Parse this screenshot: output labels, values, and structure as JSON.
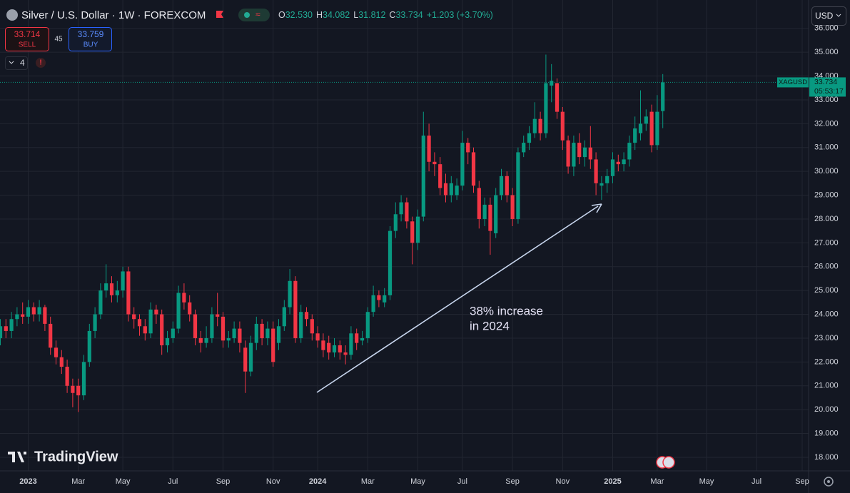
{
  "header": {
    "symbol": "Silver / U.S. Dollar · 1W · FOREXCOM",
    "ohlc": [
      {
        "label": "O",
        "value": "32.530"
      },
      {
        "label": "H",
        "value": "34.082"
      },
      {
        "label": "L",
        "value": "31.812"
      },
      {
        "label": "C",
        "value": "33.734"
      }
    ],
    "change": "+1.203 (+3.70%)"
  },
  "trade": {
    "sell_price": "33.714",
    "sell": "SELL",
    "spread": "45",
    "buy_price": "33.759",
    "buy": "BUY",
    "indicators": "4"
  },
  "currency": "USD",
  "brand": "TradingView",
  "chart_data": {
    "type": "candlestick",
    "symbol_label": "XAGUSD",
    "countdown": "05:53:17",
    "annotation": [
      "38% increase",
      "in 2024"
    ],
    "up_color": "#089981",
    "down_color": "#f23645",
    "categories": [
      null,
      null,
      null,
      null,
      null,
      "2023",
      null,
      null,
      null,
      null,
      null,
      null,
      null,
      null,
      "Mar",
      null,
      null,
      null,
      null,
      null,
      null,
      null,
      "May",
      null,
      null,
      null,
      null,
      null,
      null,
      null,
      null,
      "Jul",
      null,
      null,
      null,
      null,
      null,
      null,
      null,
      null,
      "Sep",
      null,
      null,
      null,
      null,
      null,
      null,
      null,
      null,
      "Nov",
      null,
      null,
      null,
      null,
      null,
      null,
      null,
      "2024",
      null,
      null,
      null,
      null,
      null,
      null,
      null,
      null,
      "Mar",
      null,
      null,
      null,
      null,
      null,
      null,
      null,
      null,
      "May",
      null,
      null,
      null,
      null,
      null,
      null,
      null,
      "Jul",
      null,
      null,
      null,
      null,
      null,
      null,
      null,
      null,
      "Sep",
      null,
      null,
      null,
      null,
      null,
      null,
      null,
      null,
      "Nov",
      null,
      null,
      null,
      null,
      null,
      null,
      null,
      null,
      "2025",
      null,
      null,
      null,
      null,
      null,
      null,
      null,
      "Mar",
      null
    ],
    "future_categories": [
      "May",
      "Jul",
      "Sep"
    ],
    "open": [
      23.0,
      23.5,
      23.3,
      23.8,
      24.0,
      23.9,
      24.3,
      24.0,
      24.3,
      23.6,
      22.6,
      22.2,
      21.8,
      21.0,
      21.0,
      20.6,
      22.0,
      23.3,
      24.0,
      25.0,
      25.3,
      24.8,
      25.0,
      25.8,
      24.0,
      23.8,
      23.5,
      23.2,
      24.2,
      24.0,
      22.7,
      23.0,
      23.4,
      24.9,
      24.5,
      24.0,
      23.0,
      22.8,
      23.0,
      24.0,
      23.9,
      22.9,
      23.0,
      23.4,
      22.6,
      21.6,
      22.8,
      23.6,
      23.0,
      23.4,
      22.8,
      23.5,
      24.3,
      25.4,
      23.0,
      24.1,
      23.8,
      23.2,
      22.9,
      22.8,
      22.4,
      22.7,
      22.4,
      22.3,
      23.2,
      22.9,
      23.0,
      24.1,
      24.8,
      24.5,
      24.8,
      27.5,
      28.2,
      28.7,
      27.9,
      27.0,
      28.1,
      31.5,
      30.4,
      30.3,
      29.5,
      29.0,
      29.0,
      29.4,
      31.2,
      30.8,
      29.3,
      28.0,
      28.6,
      27.4,
      29.0,
      29.8,
      29.0,
      28.0,
      30.8,
      31.2,
      31.6,
      32.2,
      31.6,
      33.6,
      33.7,
      32.5,
      31.3,
      30.2,
      31.2,
      30.6,
      31.0,
      30.5,
      29.4,
      29.5,
      29.8,
      30.4,
      30.3,
      30.5,
      31.2,
      31.6,
      32.0,
      32.5,
      31.1,
      32.53
    ],
    "high": [
      23.8,
      23.8,
      24.1,
      24.3,
      24.5,
      24.6,
      24.5,
      24.6,
      24.4,
      23.9,
      22.9,
      22.5,
      22.1,
      21.3,
      21.3,
      22.3,
      23.6,
      24.3,
      25.3,
      26.1,
      25.6,
      25.4,
      26.0,
      26.0,
      24.3,
      24.0,
      23.8,
      24.5,
      24.4,
      24.2,
      23.3,
      23.7,
      25.2,
      25.3,
      24.8,
      24.2,
      23.3,
      23.5,
      24.3,
      24.9,
      24.1,
      23.3,
      23.7,
      23.7,
      22.9,
      23.1,
      23.9,
      23.8,
      23.7,
      23.7,
      23.8,
      24.6,
      25.9,
      25.6,
      24.4,
      24.3,
      24.0,
      23.5,
      23.2,
      23.1,
      23.0,
      22.9,
      22.7,
      23.5,
      23.4,
      23.3,
      24.3,
      25.2,
      25.0,
      25.1,
      27.7,
      28.7,
      29.0,
      28.9,
      28.1,
      28.4,
      32.5,
      32.0,
      30.8,
      30.6,
      29.9,
      29.8,
      29.7,
      31.7,
      31.4,
      31.0,
      29.6,
      28.9,
      28.9,
      29.3,
      30.1,
      30.0,
      29.3,
      31.0,
      31.5,
      31.9,
      32.9,
      32.5,
      34.9,
      34.5,
      33.9,
      32.7,
      31.5,
      31.5,
      31.6,
      31.3,
      31.9,
      30.8,
      29.8,
      30.1,
      30.8,
      30.7,
      30.8,
      31.5,
      32.3,
      33.4,
      32.6,
      32.8,
      33.2,
      34.082
    ],
    "low": [
      22.7,
      23.0,
      23.0,
      23.5,
      23.6,
      23.6,
      23.7,
      23.7,
      23.3,
      22.3,
      21.9,
      21.5,
      20.7,
      20.1,
      19.9,
      20.4,
      21.8,
      23.0,
      23.8,
      24.7,
      24.5,
      24.5,
      24.7,
      23.7,
      23.4,
      23.1,
      22.9,
      23.0,
      23.6,
      22.3,
      22.4,
      22.8,
      23.2,
      24.2,
      23.7,
      22.7,
      22.4,
      22.6,
      22.8,
      23.5,
      22.6,
      22.6,
      22.8,
      22.4,
      20.7,
      21.4,
      22.5,
      22.7,
      22.7,
      21.8,
      22.5,
      23.3,
      24.0,
      22.8,
      22.8,
      23.5,
      22.9,
      22.6,
      22.2,
      22.1,
      22.2,
      22.1,
      21.9,
      22.1,
      22.5,
      22.7,
      22.8,
      23.9,
      24.3,
      24.3,
      24.6,
      27.2,
      27.9,
      27.6,
      26.1,
      26.7,
      27.9,
      30.0,
      29.8,
      29.0,
      28.7,
      28.7,
      28.8,
      29.2,
      30.3,
      29.1,
      27.6,
      27.7,
      26.5,
      27.2,
      28.8,
      28.7,
      27.7,
      27.8,
      30.6,
      30.9,
      31.4,
      31.3,
      31.4,
      32.9,
      32.2,
      30.9,
      29.9,
      29.8,
      30.3,
      30.2,
      30.1,
      29.0,
      28.8,
      29.1,
      29.5,
      30.0,
      30.0,
      30.2,
      30.9,
      31.3,
      31.7,
      30.8,
      30.9,
      31.812
    ],
    "close": [
      23.5,
      23.3,
      23.8,
      24.0,
      23.9,
      24.3,
      24.0,
      24.3,
      23.6,
      22.6,
      22.2,
      21.8,
      21.0,
      20.7,
      20.6,
      22.0,
      23.3,
      24.0,
      25.0,
      25.3,
      24.8,
      25.0,
      25.8,
      24.0,
      23.8,
      23.5,
      23.2,
      24.2,
      24.0,
      22.7,
      23.0,
      23.4,
      24.9,
      24.5,
      24.0,
      23.0,
      22.8,
      23.0,
      24.0,
      23.9,
      22.9,
      23.0,
      23.4,
      22.8,
      21.6,
      22.8,
      23.6,
      23.0,
      23.4,
      22.0,
      23.5,
      24.3,
      25.4,
      23.0,
      24.1,
      23.8,
      23.2,
      22.9,
      22.5,
      22.4,
      22.7,
      22.4,
      22.3,
      23.2,
      22.8,
      23.0,
      24.1,
      24.8,
      24.6,
      24.8,
      27.5,
      28.2,
      28.7,
      27.9,
      27.0,
      28.1,
      31.5,
      30.4,
      30.3,
      29.3,
      29.0,
      29.5,
      29.4,
      31.2,
      30.8,
      29.4,
      28.0,
      28.6,
      27.5,
      29.0,
      29.8,
      29.0,
      28.0,
      30.8,
      31.2,
      31.6,
      32.2,
      31.6,
      33.7,
      33.8,
      32.5,
      31.3,
      30.2,
      31.2,
      30.6,
      31.0,
      30.5,
      29.5,
      29.5,
      29.8,
      30.5,
      30.3,
      30.5,
      31.2,
      31.8,
      32.0,
      32.3,
      31.1,
      32.5,
      33.734
    ],
    "ylim": [
      17.43,
      37.19
    ],
    "yticks": [
      {
        "value": 18,
        "label": "18.000"
      },
      {
        "value": 19,
        "label": "19.000"
      },
      {
        "value": 20,
        "label": "20.000"
      },
      {
        "value": 21,
        "label": "21.000"
      },
      {
        "value": 22,
        "label": "22.000"
      },
      {
        "value": 23,
        "label": "23.000"
      },
      {
        "value": 24,
        "label": "24.000"
      },
      {
        "value": 25,
        "label": "25.000"
      },
      {
        "value": 26,
        "label": "26.000"
      },
      {
        "value": 27,
        "label": "27.000"
      },
      {
        "value": 28,
        "label": "28.000"
      },
      {
        "value": 29,
        "label": "29.000"
      },
      {
        "value": 30,
        "label": "30.000"
      },
      {
        "value": 31,
        "label": "31.000"
      },
      {
        "value": 32,
        "label": "32.000"
      },
      {
        "value": 33,
        "label": "33.000"
      },
      {
        "value": 34,
        "label": "34.000"
      },
      {
        "value": 35,
        "label": "35.000"
      },
      {
        "value": 36,
        "label": "36.000"
      }
    ],
    "grid": true
  }
}
